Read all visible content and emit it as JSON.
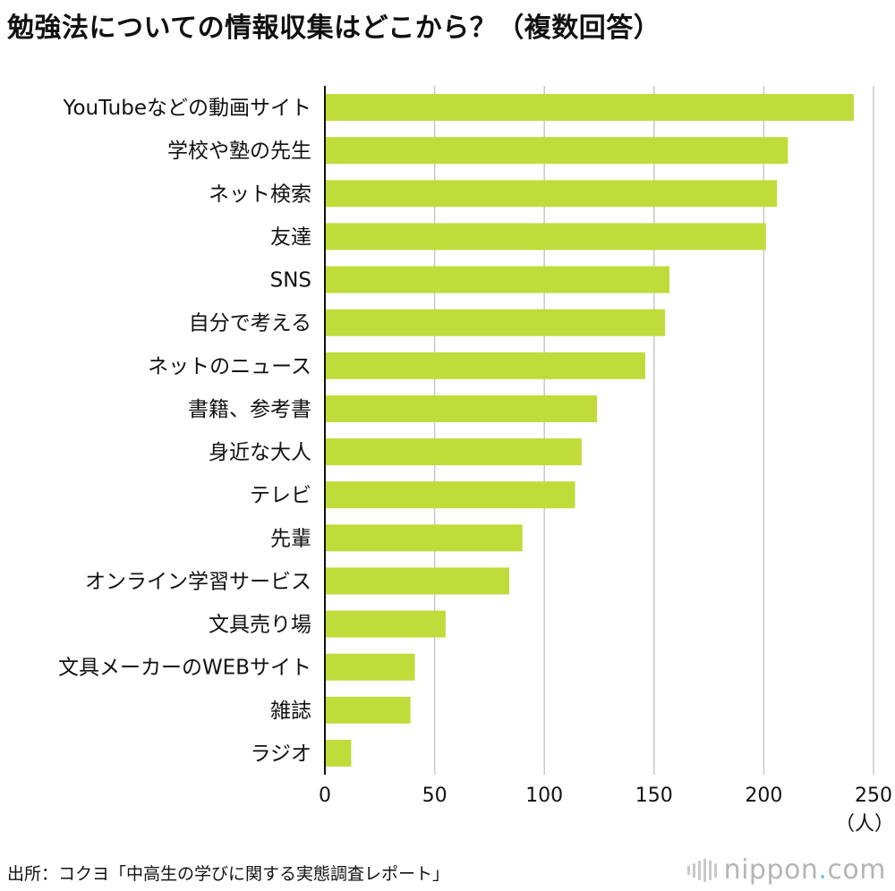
{
  "chart_data": {
    "type": "bar",
    "orientation": "horizontal",
    "title": "勉強法についての情報収集はどこから？（複数回答）",
    "categories": [
      "YouTubeなどの動画サイト",
      "学校や塾の先生",
      "ネット検索",
      "友達",
      "SNS",
      "自分で考える",
      "ネットのニュース",
      "書籍、参考書",
      "身近な大人",
      "テレビ",
      "先輩",
      "オンライン学習サービス",
      "文具売り場",
      "文具メーカーのWEBサイト",
      "雑誌",
      "ラジオ"
    ],
    "values": [
      241,
      211,
      206,
      201,
      157,
      155,
      146,
      124,
      117,
      114,
      90,
      84,
      55,
      41,
      39,
      12
    ],
    "xlim": [
      0,
      250
    ],
    "xticks": [
      "0",
      "50",
      "100",
      "150",
      "200",
      "250"
    ],
    "unit_label": "（人）",
    "grid": true,
    "bar_color": "#bfdc3a"
  },
  "footer": {
    "source": "出所：コクヨ「中高生の学びに関する実態調査レポート」",
    "brand_name": "nippon",
    "brand_dot": ".",
    "brand_tld": "com"
  }
}
